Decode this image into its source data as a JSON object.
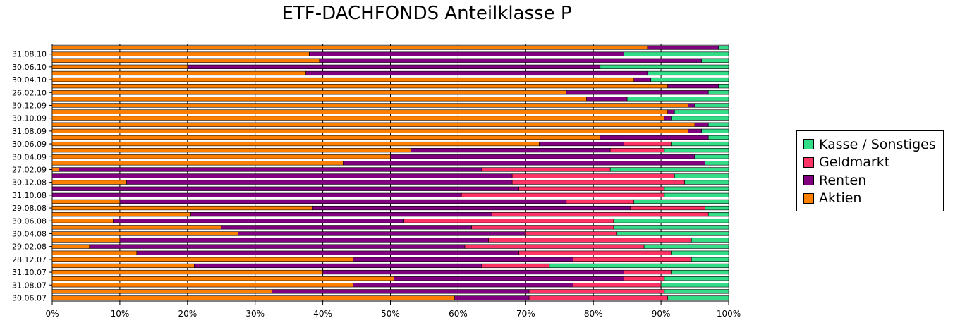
{
  "chart_data": {
    "type": "bar",
    "orientation": "horizontal",
    "stacked": true,
    "title": "ETF-DACHFONDS Anteilklasse P",
    "xlabel": "",
    "ylabel": "",
    "xlim": [
      0,
      100
    ],
    "x_ticks": [
      "0%",
      "10%",
      "20%",
      "30%",
      "40%",
      "50%",
      "60%",
      "70%",
      "80%",
      "90%",
      "100%"
    ],
    "categories": [
      "30.06.07",
      "",
      "31.08.07",
      "",
      "31.10.07",
      "",
      "28.12.07",
      "",
      "29.02.08",
      "",
      "30.04.08",
      "",
      "30.06.08",
      "",
      "29.08.08",
      "",
      "31.10.08",
      "",
      "30.12.08",
      "",
      "27.02.09",
      "",
      "30.04.09",
      "",
      "30.06.09",
      "",
      "31.08.09",
      "",
      "30.10.09",
      "",
      "30.12.09",
      "",
      "26.02.10",
      "",
      "30.04.10",
      "",
      "30.06.10",
      "",
      "31.08.10",
      ""
    ],
    "series": [
      {
        "name": "Aktien",
        "color": "#ff8000",
        "values": [
          59.5,
          32.5,
          44.5,
          50.5,
          40,
          21,
          44.5,
          12.5,
          5.5,
          10,
          27.5,
          25,
          9,
          20.5,
          38.5,
          10,
          0,
          0,
          11,
          0,
          1,
          43,
          50,
          53,
          72,
          81,
          94,
          95,
          90.5,
          91,
          94,
          79,
          76,
          91,
          86,
          37.5,
          20,
          39.5,
          38,
          88
        ]
      },
      {
        "name": "Renten",
        "color": "#800080",
        "values": [
          11,
          38,
          32.5,
          34,
          44.5,
          42.5,
          32.5,
          56.5,
          55.5,
          54.5,
          42.5,
          37,
          43,
          44.5,
          47,
          66,
          60.5,
          69,
          57,
          68,
          62.5,
          53.5,
          45,
          29.5,
          12.5,
          16,
          2,
          2,
          1,
          1,
          1,
          6,
          21,
          7.5,
          2.5,
          50.5,
          61,
          56.5,
          46.5,
          10.5
        ]
      },
      {
        "name": "Geldmarkt",
        "color": "#ff3366",
        "values": [
          20.5,
          20,
          13,
          6,
          7,
          10,
          17.5,
          22.5,
          26.5,
          30,
          13.5,
          21,
          31,
          32,
          11,
          10,
          30,
          21.5,
          25.5,
          24,
          19,
          0,
          0,
          8,
          7,
          0,
          0,
          0,
          0,
          0,
          0,
          0,
          0,
          0,
          0,
          0,
          0,
          0,
          0,
          0
        ]
      },
      {
        "name": "Kasse / Sonstiges",
        "color": "#33dd88",
        "values": [
          9,
          9.5,
          10,
          9.5,
          8.5,
          26.5,
          5.5,
          8.5,
          12.5,
          5.5,
          16.5,
          17,
          17,
          3,
          3.5,
          14,
          9.5,
          9.5,
          6.5,
          8,
          17.5,
          3.5,
          5,
          9.5,
          8.5,
          3,
          4,
          3,
          8.5,
          8,
          5,
          15,
          3,
          1.5,
          11.5,
          12,
          19,
          4,
          15.5,
          1.5
        ]
      }
    ],
    "legend": [
      "Kasse / Sonstiges",
      "Geldmarkt",
      "Renten",
      "Aktien"
    ],
    "legend_position": "right",
    "grid": true
  }
}
